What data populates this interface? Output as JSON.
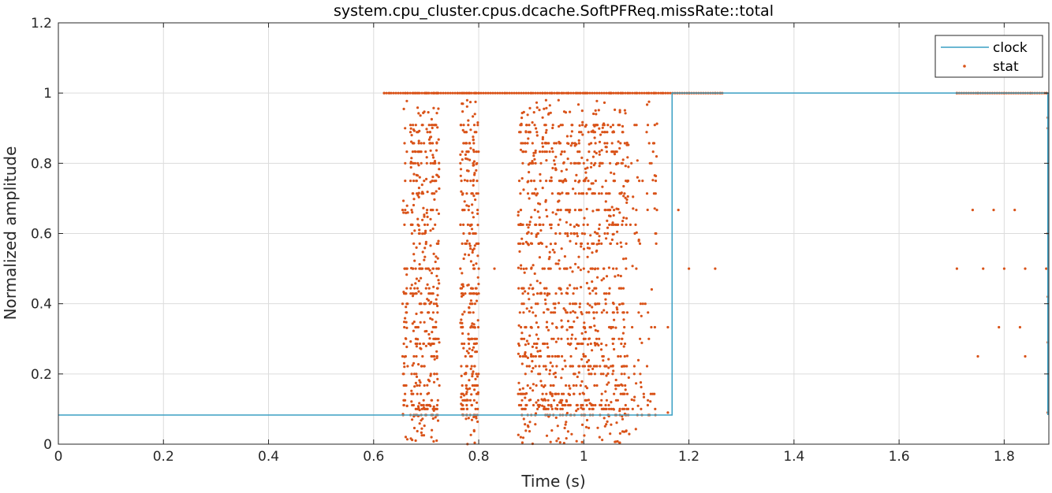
{
  "chart_data": {
    "type": "line+scatter",
    "title": "system.cpu_cluster.cpus.dcache.SoftPFReq.missRate::total",
    "xlabel": "Time (s)",
    "ylabel": "Normalized amplitude",
    "xlim": [
      0,
      1.885
    ],
    "ylim": [
      0,
      1.2
    ],
    "xticks": [
      0,
      0.2,
      0.4,
      0.6,
      0.8,
      1,
      1.2,
      1.4,
      1.6,
      1.8
    ],
    "xtick_labels": [
      "0",
      "0.2",
      "0.4",
      "0.6",
      "0.8",
      "1",
      "1.2",
      "1.4",
      "1.6",
      "1.8"
    ],
    "yticks": [
      0,
      0.2,
      0.4,
      0.6,
      0.8,
      1,
      1.2
    ],
    "ytick_labels": [
      "0",
      "0.2",
      "0.4",
      "0.6",
      "0.8",
      "1",
      "1.2"
    ],
    "grid": true,
    "legend": {
      "position": "top-right",
      "entries": [
        "clock",
        "stat"
      ]
    },
    "series": [
      {
        "name": "clock",
        "style": "step-line",
        "color": "#3a9fc4",
        "x": [
          0,
          1.168,
          1.168,
          1.883,
          1.883
        ],
        "y": [
          0.083,
          0.083,
          1,
          1,
          0.083
        ]
      },
      {
        "name": "stat",
        "style": "markers",
        "color": "#d95319",
        "levels": [
          1,
          0.909,
          0.889,
          0.857,
          0.833,
          0.8,
          0.75,
          0.714,
          0.667,
          0.625,
          0.6,
          0.571,
          0.5,
          0.444,
          0.429,
          0.4,
          0.375,
          0.333,
          0.3,
          0.286,
          0.25,
          0.222,
          0.2,
          0.167,
          0.143,
          0.125,
          0.111,
          0.1,
          0.083
        ],
        "x_range": [
          0.615,
          1.885
        ],
        "points": [
          [
            0.62,
            1
          ],
          [
            0.63,
            1
          ],
          [
            0.66,
            1
          ],
          [
            0.68,
            1
          ],
          [
            0.7,
            1
          ],
          [
            0.72,
            1
          ],
          [
            0.76,
            1
          ],
          [
            0.8,
            1
          ],
          [
            0.85,
            1
          ],
          [
            0.9,
            1
          ],
          [
            0.95,
            1
          ],
          [
            1.0,
            1
          ],
          [
            1.05,
            1
          ],
          [
            1.1,
            1
          ],
          [
            1.15,
            1
          ],
          [
            1.2,
            1
          ],
          [
            1.25,
            1
          ],
          [
            1.26,
            1
          ],
          [
            1.71,
            1
          ],
          [
            1.75,
            1
          ],
          [
            1.8,
            1
          ],
          [
            1.85,
            1
          ],
          [
            1.88,
            1
          ],
          [
            0.66,
            0.5
          ],
          [
            0.68,
            0.5
          ],
          [
            0.72,
            0.5
          ],
          [
            0.8,
            0.5
          ],
          [
            0.83,
            0.5
          ],
          [
            0.9,
            0.5
          ],
          [
            1.0,
            0.5
          ],
          [
            1.1,
            0.5
          ],
          [
            1.2,
            0.5
          ],
          [
            1.25,
            0.5
          ],
          [
            1.71,
            0.5
          ],
          [
            1.76,
            0.5
          ],
          [
            1.8,
            0.5
          ],
          [
            1.84,
            0.5
          ],
          [
            1.88,
            0.5
          ],
          [
            0.66,
            0.667
          ],
          [
            0.88,
            0.667
          ],
          [
            0.95,
            0.667
          ],
          [
            1.05,
            0.667
          ],
          [
            1.1,
            0.667
          ],
          [
            1.18,
            0.667
          ],
          [
            1.74,
            0.667
          ],
          [
            1.78,
            0.667
          ],
          [
            1.82,
            0.667
          ],
          [
            0.66,
            0.75
          ],
          [
            0.9,
            0.75
          ],
          [
            1.0,
            0.75
          ],
          [
            1.08,
            0.75
          ],
          [
            0.66,
            0.8
          ],
          [
            0.9,
            0.8
          ],
          [
            1.0,
            0.8
          ],
          [
            1.05,
            0.8
          ],
          [
            0.9,
            0.333
          ],
          [
            1.0,
            0.333
          ],
          [
            1.05,
            0.333
          ],
          [
            1.16,
            0.333
          ],
          [
            1.79,
            0.333
          ],
          [
            1.83,
            0.333
          ],
          [
            0.9,
            0.25
          ],
          [
            0.95,
            0.25
          ],
          [
            1.0,
            0.25
          ],
          [
            1.75,
            0.25
          ],
          [
            1.84,
            0.25
          ],
          [
            0.68,
            0.083
          ],
          [
            0.7,
            0.083
          ],
          [
            0.72,
            0.083
          ],
          [
            0.9,
            0.083
          ],
          [
            1.0,
            0.083
          ],
          [
            1.06,
            0.083
          ],
          [
            1.16,
            0.09
          ],
          [
            1.883,
            0.09
          ],
          [
            0.68,
            0.01
          ],
          [
            0.71,
            0.02
          ],
          [
            0.72,
            0.01
          ],
          [
            0.88,
            0.02
          ],
          [
            1.03,
            0.02
          ]
        ]
      }
    ]
  }
}
